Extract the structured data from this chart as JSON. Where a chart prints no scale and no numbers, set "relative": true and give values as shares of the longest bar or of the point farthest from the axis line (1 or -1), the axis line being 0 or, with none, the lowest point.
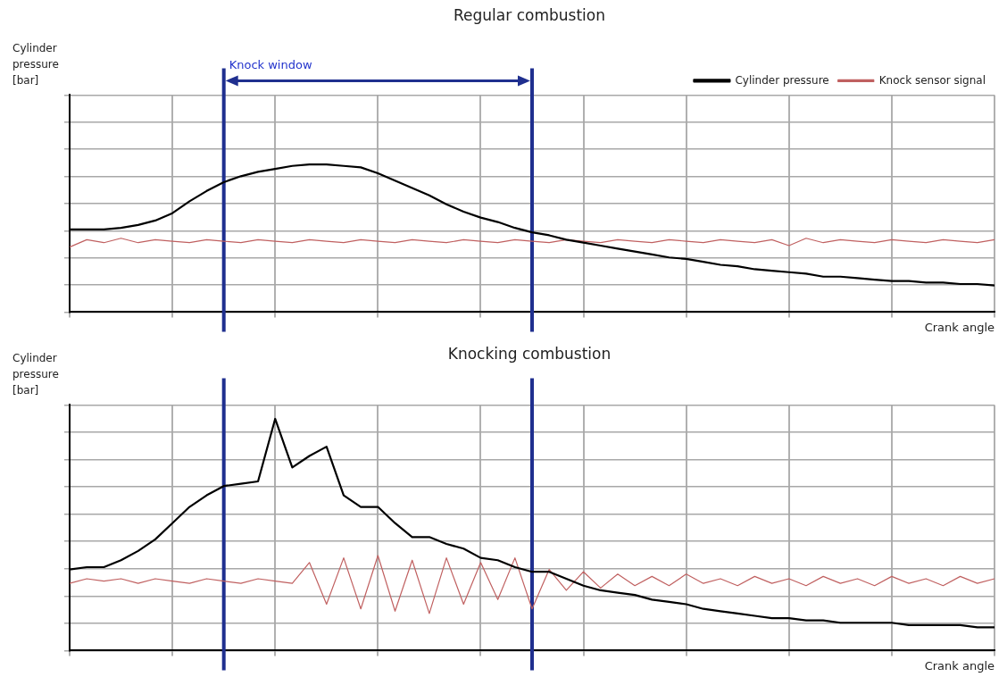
{
  "chart_data": [
    {
      "type": "line",
      "title": "Regular combustion",
      "xlabel": "Crank angle",
      "ylabel": "Cylinder pressure [bar]",
      "relative": true,
      "grid": true,
      "legend": "top right",
      "marker": "none",
      "categories": [
        null,
        null,
        null,
        null,
        null,
        null,
        null,
        null,
        null,
        null,
        null,
        null,
        null,
        null,
        null,
        null,
        null,
        null,
        null,
        null,
        null,
        null,
        null,
        null,
        null,
        null,
        null,
        null,
        null,
        null,
        null,
        null,
        null,
        null,
        null,
        null,
        null,
        null,
        null,
        null,
        null,
        null,
        null,
        null,
        null,
        null,
        null,
        null,
        null,
        null,
        null,
        null,
        null,
        null,
        null
      ],
      "series": [
        {
          "name": "Cylinder pressure",
          "color": "#000000",
          "values": [
            0.56,
            0.56,
            0.56,
            0.57,
            0.59,
            0.62,
            0.67,
            0.75,
            0.82,
            0.88,
            0.92,
            0.95,
            0.97,
            0.99,
            1,
            1,
            0.99,
            0.98,
            0.94,
            0.89,
            0.84,
            0.79,
            0.73,
            0.68,
            0.64,
            0.61,
            0.57,
            0.54,
            0.52,
            0.49,
            0.47,
            0.45,
            0.43,
            0.41,
            0.39,
            0.37,
            0.36,
            0.34,
            0.32,
            0.31,
            0.29,
            0.28,
            0.27,
            0.26,
            0.24,
            0.24,
            0.23,
            0.22,
            0.21,
            0.21,
            0.2,
            0.2,
            0.19,
            0.19,
            0.18
          ]
        },
        {
          "name": "Knock sensor signal",
          "color": "#c06060",
          "values": [
            0.44,
            0.49,
            0.47,
            0.5,
            0.47,
            0.49,
            0.48,
            0.47,
            0.49,
            0.48,
            0.47,
            0.49,
            0.48,
            0.47,
            0.49,
            0.48,
            0.47,
            0.49,
            0.48,
            0.47,
            0.49,
            0.48,
            0.47,
            0.49,
            0.48,
            0.47,
            0.49,
            0.48,
            0.47,
            0.49,
            0.48,
            0.47,
            0.49,
            0.48,
            0.47,
            0.49,
            0.48,
            0.47,
            0.49,
            0.48,
            0.47,
            0.49,
            0.45,
            0.5,
            0.47,
            0.49,
            0.48,
            0.47,
            0.49,
            0.48,
            0.47,
            0.49,
            0.48,
            0.47,
            0.49
          ]
        }
      ],
      "annotations": [
        "Knock window"
      ]
    },
    {
      "type": "line",
      "title": "Knocking combustion",
      "xlabel": "Crank angle",
      "ylabel": "Cylinder pressure [bar]",
      "relative": true,
      "grid": true,
      "marker": "none",
      "categories": [
        null,
        null,
        null,
        null,
        null,
        null,
        null,
        null,
        null,
        null,
        null,
        null,
        null,
        null,
        null,
        null,
        null,
        null,
        null,
        null,
        null,
        null,
        null,
        null,
        null,
        null,
        null,
        null,
        null,
        null,
        null,
        null,
        null,
        null,
        null,
        null,
        null,
        null,
        null,
        null,
        null,
        null,
        null,
        null,
        null,
        null,
        null,
        null,
        null,
        null,
        null,
        null,
        null,
        null,
        null
      ],
      "series": [
        {
          "color": "#000000",
          "values": [
            0.35,
            0.36,
            0.36,
            0.39,
            0.43,
            0.48,
            0.55,
            0.62,
            0.67,
            0.71,
            0.72,
            0.73,
            1,
            0.79,
            0.84,
            0.88,
            0.67,
            0.62,
            0.62,
            0.55,
            0.49,
            0.49,
            0.46,
            0.44,
            0.4,
            0.39,
            0.36,
            0.34,
            0.34,
            0.31,
            0.28,
            0.26,
            0.25,
            0.24,
            0.22,
            0.21,
            0.2,
            0.18,
            0.17,
            0.16,
            0.15,
            0.14,
            0.14,
            0.13,
            0.13,
            0.12,
            0.12,
            0.12,
            0.12,
            0.11,
            0.11,
            0.11,
            0.11,
            0.1,
            0.1
          ]
        },
        {
          "color": "#c06060",
          "values": [
            0.29,
            0.31,
            0.3,
            0.31,
            0.29,
            0.31,
            0.3,
            0.29,
            0.31,
            0.3,
            0.29,
            0.31,
            0.3,
            0.29,
            0.38,
            0.2,
            0.4,
            0.18,
            0.41,
            0.17,
            0.39,
            0.16,
            0.4,
            0.2,
            0.38,
            0.22,
            0.4,
            0.18,
            0.35,
            0.26,
            0.34,
            0.27,
            0.33,
            0.28,
            0.32,
            0.28,
            0.33,
            0.29,
            0.31,
            0.28,
            0.32,
            0.29,
            0.31,
            0.28,
            0.32,
            0.29,
            0.31,
            0.28,
            0.32,
            0.29,
            0.31,
            0.28,
            0.32,
            0.29,
            0.31
          ]
        }
      ]
    }
  ]
}
